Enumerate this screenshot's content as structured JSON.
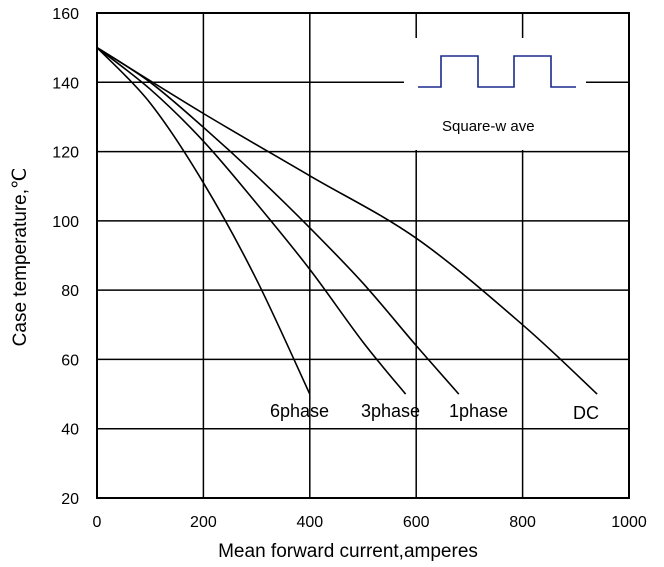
{
  "chart_data": {
    "type": "line",
    "xlabel": "Mean forward  current,amperes",
    "ylabel": "Case temperature,℃",
    "xlim": [
      0,
      1000
    ],
    "ylim": [
      20,
      160
    ],
    "x_ticks": [
      0,
      200,
      400,
      600,
      800,
      1000
    ],
    "y_ticks": [
      20,
      40,
      60,
      80,
      100,
      120,
      140,
      160
    ],
    "grid": true,
    "series": [
      {
        "name": "6phase",
        "x": [
          0,
          100,
          200,
          300,
          400
        ],
        "y": [
          150,
          134,
          111,
          83,
          50
        ]
      },
      {
        "name": "3phase",
        "x": [
          0,
          100,
          200,
          300,
          400,
          500,
          580
        ],
        "y": [
          150,
          138,
          123,
          105,
          86,
          65,
          50
        ]
      },
      {
        "name": "1phase",
        "x": [
          0,
          100,
          200,
          300,
          400,
          500,
          600,
          680
        ],
        "y": [
          150,
          140,
          127,
          113,
          98,
          82,
          64,
          50
        ]
      },
      {
        "name": "DC",
        "x": [
          0,
          200,
          400,
          600,
          800,
          940
        ],
        "y": [
          150,
          131,
          113,
          95,
          70,
          50
        ]
      }
    ],
    "inset": {
      "label": "Square-w ave",
      "color": "#1a2a8c"
    }
  }
}
